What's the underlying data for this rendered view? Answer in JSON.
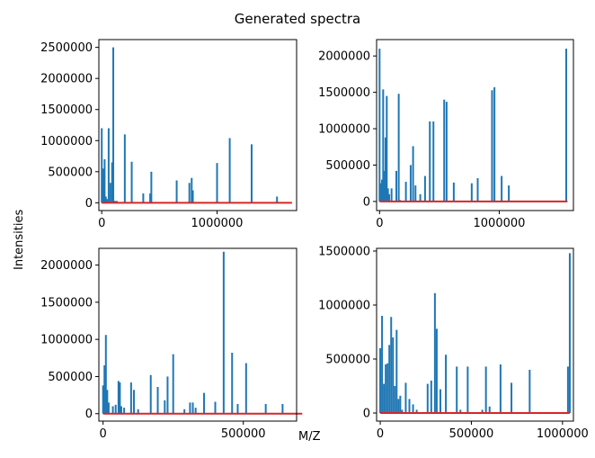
{
  "title": "Generated spectra",
  "xlabel": "M/Z",
  "ylabel": "Intensities",
  "colors": {
    "stems": "#1f77b4",
    "baseline": "#d62728"
  },
  "chart_data": [
    {
      "type": "bar",
      "subtype": "stem",
      "xlim": [
        -25000,
        1690000
      ],
      "ylim": [
        -125000,
        2625000
      ],
      "xticks": [
        0,
        1000000
      ],
      "xtick_labels": [
        "0",
        "1000000"
      ],
      "yticks": [
        0,
        500000,
        1000000,
        1500000,
        2000000,
        2500000
      ],
      "ytick_labels": [
        "0",
        "500000",
        "1000000",
        "1500000",
        "2000000",
        "2500000"
      ],
      "baseline": {
        "from": 0,
        "to": 1650000
      },
      "x": [
        0,
        10000,
        15000,
        20000,
        25000,
        35000,
        45000,
        60000,
        75000,
        90000,
        100000,
        115000,
        130000,
        200000,
        260000,
        360000,
        420000,
        430000,
        650000,
        760000,
        780000,
        790000,
        1000000,
        1110000,
        1300000,
        1520000
      ],
      "values": [
        1200000,
        550000,
        450000,
        350000,
        700000,
        100000,
        60000,
        1200000,
        320000,
        650000,
        2500000,
        30000,
        30000,
        1100000,
        660000,
        150000,
        150000,
        500000,
        360000,
        320000,
        400000,
        200000,
        640000,
        1040000,
        940000,
        100000
      ]
    },
    {
      "type": "bar",
      "subtype": "stem",
      "xlim": [
        -25000,
        1620000
      ],
      "ylim": [
        -125000,
        2225000
      ],
      "xticks": [
        0,
        1000000
      ],
      "xtick_labels": [
        "0",
        "1000000"
      ],
      "yticks": [
        0,
        500000,
        1000000,
        1500000,
        2000000
      ],
      "ytick_labels": [
        "0",
        "500000",
        "1000000",
        "1500000",
        "2000000"
      ],
      "baseline": {
        "from": 0,
        "to": 1570000
      },
      "x": [
        0,
        10000,
        20000,
        30000,
        40000,
        50000,
        60000,
        70000,
        80000,
        100000,
        140000,
        160000,
        170000,
        220000,
        260000,
        280000,
        300000,
        340000,
        380000,
        420000,
        450000,
        540000,
        560000,
        620000,
        770000,
        820000,
        940000,
        960000,
        1020000,
        1080000,
        1560000
      ],
      "values": [
        2100000,
        250000,
        300000,
        1540000,
        420000,
        880000,
        1450000,
        180000,
        100000,
        180000,
        420000,
        1480000,
        20000,
        270000,
        500000,
        760000,
        220000,
        100000,
        350000,
        1100000,
        1100000,
        1400000,
        1370000,
        260000,
        250000,
        320000,
        1530000,
        1570000,
        350000,
        220000,
        2100000
      ]
    },
    {
      "type": "bar",
      "subtype": "stem",
      "xlim": [
        -15000,
        690000
      ],
      "ylim": [
        -100000,
        2225000
      ],
      "xticks": [
        0,
        500000
      ],
      "xtick_labels": [
        "0",
        "500000"
      ],
      "yticks": [
        0,
        500000,
        1000000,
        1500000,
        2000000
      ],
      "ytick_labels": [
        "0",
        "500000",
        "1000000",
        "1500000",
        "2000000"
      ],
      "baseline": {
        "from": 0,
        "to": 710000
      },
      "x": [
        0,
        5000,
        10000,
        15000,
        20000,
        35000,
        45000,
        55000,
        60000,
        65000,
        75000,
        100000,
        110000,
        125000,
        170000,
        195000,
        220000,
        230000,
        250000,
        290000,
        310000,
        320000,
        330000,
        360000,
        400000,
        430000,
        460000,
        480000,
        510000,
        580000,
        640000
      ],
      "values": [
        380000,
        650000,
        1060000,
        320000,
        150000,
        100000,
        120000,
        440000,
        420000,
        100000,
        80000,
        420000,
        320000,
        60000,
        520000,
        360000,
        180000,
        500000,
        800000,
        60000,
        150000,
        150000,
        80000,
        280000,
        160000,
        2180000,
        820000,
        130000,
        680000,
        130000,
        130000
      ]
    },
    {
      "type": "bar",
      "subtype": "stem",
      "xlim": [
        -20000,
        1060000
      ],
      "ylim": [
        -75000,
        1525000
      ],
      "xticks": [
        0,
        500000,
        1000000
      ],
      "xtick_labels": [
        "0",
        "500000",
        "1000000"
      ],
      "yticks": [
        0,
        500000,
        1000000,
        1500000
      ],
      "ytick_labels": [
        "0",
        "500000",
        "1000000",
        "1500000"
      ],
      "baseline": {
        "from": 0,
        "to": 1040000
      },
      "x": [
        0,
        10000,
        20000,
        30000,
        40000,
        50000,
        60000,
        70000,
        80000,
        90000,
        100000,
        110000,
        120000,
        140000,
        160000,
        180000,
        200000,
        260000,
        280000,
        300000,
        310000,
        330000,
        360000,
        420000,
        440000,
        480000,
        560000,
        580000,
        600000,
        660000,
        720000,
        820000,
        1030000,
        1040000
      ],
      "values": [
        600000,
        900000,
        270000,
        450000,
        460000,
        630000,
        890000,
        700000,
        250000,
        770000,
        130000,
        160000,
        30000,
        280000,
        130000,
        80000,
        30000,
        270000,
        300000,
        1110000,
        780000,
        220000,
        540000,
        430000,
        30000,
        430000,
        30000,
        430000,
        60000,
        450000,
        280000,
        400000,
        430000,
        1480000
      ]
    }
  ]
}
